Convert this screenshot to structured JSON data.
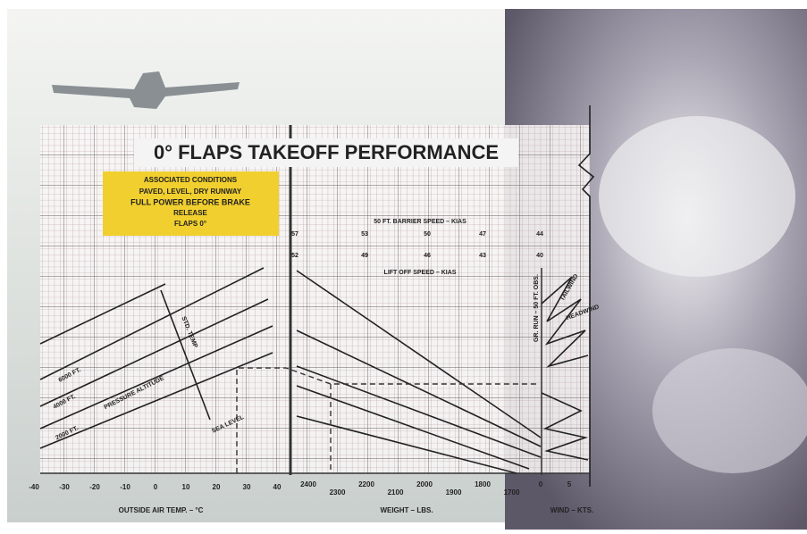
{
  "title": "0° FLAPS TAKEOFF PERFORMANCE",
  "conditions": {
    "heading": "ASSOCIATED CONDITIONS",
    "lines": [
      "PAVED, LEVEL, DRY RUNWAY",
      "FULL POWER BEFORE BRAKE",
      "RELEASE",
      "FLAPS 0°"
    ]
  },
  "barrier_speed": {
    "label": "50 FT. BARRIER SPEED – KIAS",
    "values": [
      "57",
      "53",
      "50",
      "47",
      "44"
    ]
  },
  "liftoff_speed": {
    "label": "LIFT OFF SPEED – KIAS",
    "values": [
      "52",
      "49",
      "46",
      "43",
      "40"
    ]
  },
  "altitude_labels": [
    "6000 FT.",
    "4000 FT.",
    "2000 FT.",
    "SEA LEVEL"
  ],
  "pressure_altitude": "PRESSURE ALTITUDE",
  "std_temp": "STD. TEMP",
  "ground_run": "GR. RUN – 50 FT. OBS.",
  "wind_labels": [
    "TAILWIND",
    "HEADWIND"
  ],
  "axes": {
    "temperature": {
      "label": "OUTSIDE AIR TEMP. – °C",
      "ticks": [
        "-40",
        "-30",
        "-20",
        "-10",
        "0",
        "10",
        "20",
        "30",
        "40"
      ]
    },
    "weight": {
      "label": "WEIGHT – LBS.",
      "ticks": [
        "2400",
        "2300",
        "2200",
        "2100",
        "2000",
        "1900",
        "1800",
        "1700"
      ]
    },
    "wind": {
      "label": "WIND – KTS.",
      "ticks": [
        "0",
        "5"
      ]
    }
  }
}
